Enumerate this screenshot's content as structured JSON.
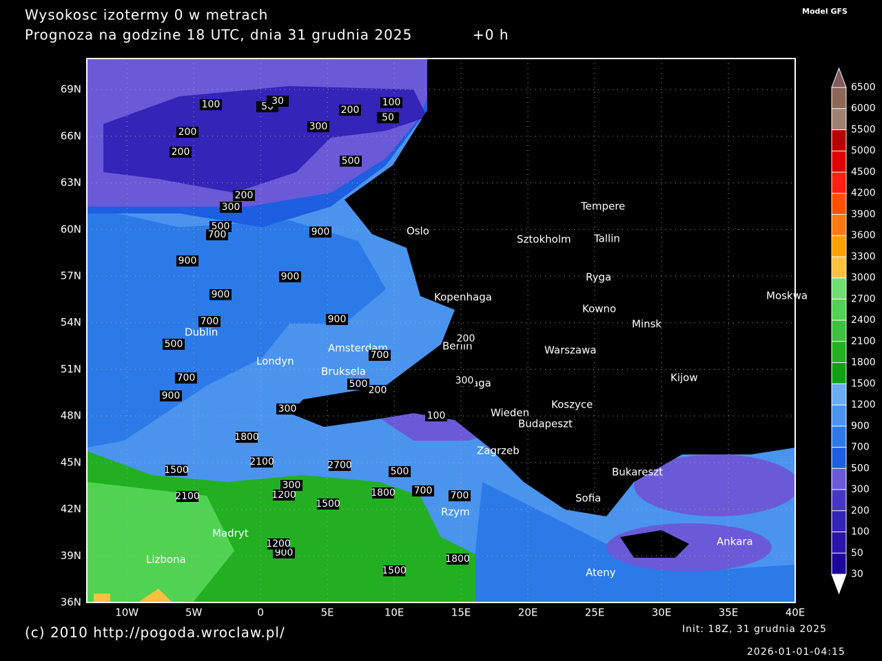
{
  "header": {
    "title": "Wysokosc izotermy 0 w metrach",
    "subtitle": "Prognoza na godzine 18 UTC, dnia 31 grudnia 2025",
    "lead": "+0 h",
    "model": "Model GFS"
  },
  "map": {
    "xlim": [
      -13,
      40
    ],
    "ylim": [
      36,
      71
    ],
    "xticks": [
      {
        "value": -10,
        "label": "10W"
      },
      {
        "value": -5,
        "label": "5W"
      },
      0,
      {
        "value": 5,
        "label": "5E"
      },
      {
        "value": 10,
        "label": "10E"
      },
      {
        "value": 15,
        "label": "15E"
      },
      {
        "value": 20,
        "label": "20E"
      },
      {
        "value": 25,
        "label": "25E"
      },
      {
        "value": 30,
        "label": "30E"
      },
      {
        "value": 35,
        "label": "35E"
      },
      {
        "value": 40,
        "label": "40E"
      }
    ],
    "yticks": [
      {
        "value": 36,
        "label": "36N"
      },
      {
        "value": 39,
        "label": "39N"
      },
      {
        "value": 42,
        "label": "42N"
      },
      {
        "value": 45,
        "label": "45N"
      },
      {
        "value": 48,
        "label": "48N"
      },
      {
        "value": 51,
        "label": "51N"
      },
      {
        "value": 54,
        "label": "54N"
      },
      {
        "value": 57,
        "label": "57N"
      },
      {
        "value": 60,
        "label": "60N"
      },
      {
        "value": 63,
        "label": "63N"
      },
      {
        "value": 66,
        "label": "66N"
      },
      {
        "value": 69,
        "label": "69N"
      }
    ],
    "grid": true,
    "cities": [
      "Tempere",
      "Sztokholm",
      "Tallin",
      "Oslo",
      "Ryga",
      "Kopenhaga",
      "Moskwa",
      "Kowno",
      "Minsk",
      "Dublin",
      "Amsterdam",
      "Berlin",
      "Warszawa",
      "Londyn",
      "Bruksela",
      "Kijow",
      "Praga",
      "Koszyce",
      "Wieden",
      "Budapeszt",
      "Zagrzeb",
      "Bukareszt",
      "Sofia",
      "Rzym",
      "Madryt",
      "Lizbona",
      "Ateny",
      "Ankara"
    ],
    "contour_labels": [
      "100",
      "50",
      "30",
      "200",
      "100",
      "50",
      "200",
      "300",
      "200",
      "500",
      "200",
      "300",
      "500",
      "700",
      "900",
      "900",
      "900",
      "900",
      "900",
      "700",
      "500",
      "700",
      "700",
      "900",
      "300",
      "200",
      "1800",
      "1500",
      "2100",
      "2100",
      "900",
      "1200",
      "1500",
      "1800",
      "1800",
      "1500",
      "1200",
      "700",
      "500",
      "300",
      "100",
      "200",
      "300",
      "700",
      "500",
      "2700"
    ]
  },
  "colorbar": {
    "levels": [
      30,
      50,
      100,
      200,
      300,
      500,
      700,
      900,
      1200,
      1500,
      1800,
      2100,
      2400,
      2700,
      3000,
      3300,
      3600,
      3900,
      4200,
      4500,
      5000,
      5500,
      6000,
      6500
    ],
    "colors": [
      "#ffffff",
      "#1c0898",
      "#2a14ac",
      "#3424b8",
      "#4636c8",
      "#6a5ad8",
      "#1e5ee0",
      "#2c7ae8",
      "#4a94ee",
      "#68acf2",
      "#10a010",
      "#22b022",
      "#3cc23c",
      "#52d252",
      "#70e070",
      "#ffc040",
      "#ffa000",
      "#ff7810",
      "#ff5000",
      "#ff2010",
      "#e00000",
      "#b80000",
      "#a08070",
      "#8c6858",
      "#805c5c"
    ]
  },
  "footer": {
    "copyright": "(c) 2010 http://pogoda.wroclaw.pl/",
    "init": "Init: 18Z, 31 grudnia 2025",
    "stamp": "2026-01-01-04:15"
  }
}
